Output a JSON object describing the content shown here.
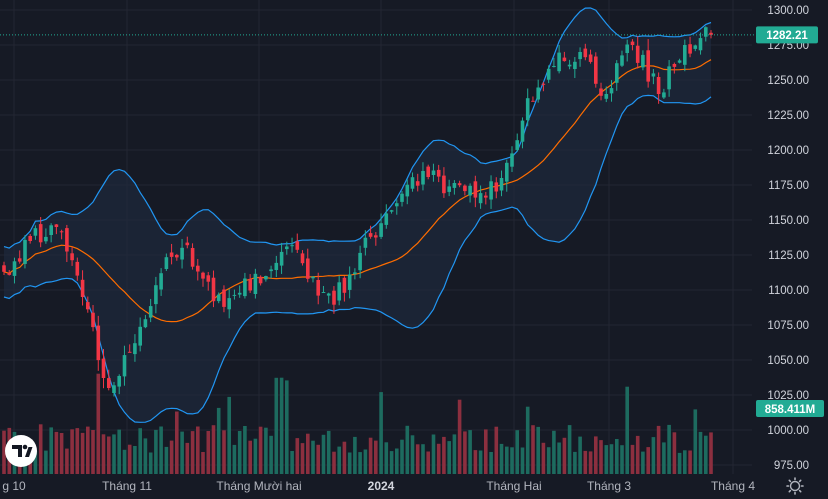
{
  "chart_data": {
    "type": "candlestick",
    "indicators": [
      "Bollinger Bands (20, 2)",
      "Volume"
    ],
    "price_axis": {
      "ylim": [
        965,
        1305
      ],
      "ticks": [
        "1300.00",
        "1275.00",
        "1250.00",
        "1225.00",
        "1200.00",
        "1175.00",
        "1150.00",
        "1125.00",
        "1100.00",
        "1075.00",
        "1050.00",
        "1025.00",
        "1000.00",
        "975.00"
      ]
    },
    "time_axis": {
      "labels": [
        "g 10",
        "Tháng 11",
        "Tháng Mười hai",
        "2024",
        "Tháng Hai",
        "Tháng 3",
        "Tháng 4"
      ],
      "bold_label": "2024"
    },
    "last_price": {
      "label": "1282.21",
      "value": 1282.21,
      "color": "#22ab94"
    },
    "last_volume": {
      "label": "858.411M"
    },
    "anchors": [
      [
        1119,
        1113
      ],
      [
        1160,
        1135
      ],
      [
        1140,
        1145
      ],
      [
        1104,
        1095
      ],
      [
        1068,
        1030
      ],
      [
        1022,
        1062
      ],
      [
        1098,
        1112
      ],
      [
        1125,
        1132
      ],
      [
        1112,
        1092
      ],
      [
        1106,
        1098
      ],
      [
        1124,
        1110
      ],
      [
        1130,
        1132
      ],
      [
        1114,
        1096
      ],
      [
        1093,
        1098
      ],
      [
        1104,
        1138
      ],
      [
        1158,
        1162
      ],
      [
        1182,
        1185
      ],
      [
        1173,
        1174
      ],
      [
        1181,
        1166
      ],
      [
        1185,
        1180
      ],
      [
        1230,
        1237
      ],
      [
        1250,
        1260
      ],
      [
        1262,
        1270
      ],
      [
        1271,
        1240
      ],
      [
        1248,
        1275
      ],
      [
        1255,
        1240
      ],
      [
        1266,
        1275
      ],
      [
        1278,
        1282.21
      ]
    ],
    "volume_avg_m": 420,
    "volume_max_m": 1150
  },
  "ui": {
    "logo_icon": "tradingview-logo-icon",
    "settings_icon": "gear-icon"
  },
  "colors": {
    "background": "#161a25",
    "up": "#22ab94",
    "down": "#f23645",
    "band": "#2196f3",
    "basis": "#ff6d00",
    "fill": "#1e2a3d",
    "vol_up": "#1d6b5f",
    "vol_down": "#8c2f3f",
    "grid": "#232632",
    "axis_text": "#d1d4dc",
    "price_tag": "#22ab94",
    "volume_tag": "#22ab94"
  }
}
